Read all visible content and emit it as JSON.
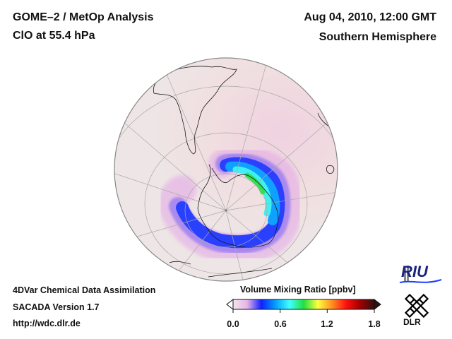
{
  "header": {
    "title": "GOME–2 / MetOp Analysis",
    "species": "ClO at 55.4 hPa",
    "datetime": "Aug 04, 2010, 12:00 GMT",
    "region": "Southern Hemisphere"
  },
  "footer": {
    "line1": "4DVar Chemical Data Assimilation",
    "line2": "SACADA Version 1.7",
    "url": "http://wdc.dlr.de"
  },
  "colorbar": {
    "title": "Volume Mixing Ratio [ppbv]",
    "ticks": [
      "0.0",
      "0.6",
      "1.2",
      "1.8"
    ],
    "range": [
      0.0,
      1.8
    ],
    "colors": [
      "#f3e6ea",
      "#e6b3e6",
      "#1020ff",
      "#00a0ff",
      "#40ffff",
      "#20e040",
      "#ffff40",
      "#ff9020",
      "#ff1010",
      "#a00000",
      "#301010"
    ]
  },
  "logos": {
    "riu": "RIU",
    "dlr": "DLR"
  },
  "map": {
    "projection": "orthographic",
    "max_value_region": "Antarctic Peninsula / Weddell Sea",
    "background_color": "#efe6e6",
    "coast_color": "#111111",
    "grid_color": "#aaaaaa"
  }
}
